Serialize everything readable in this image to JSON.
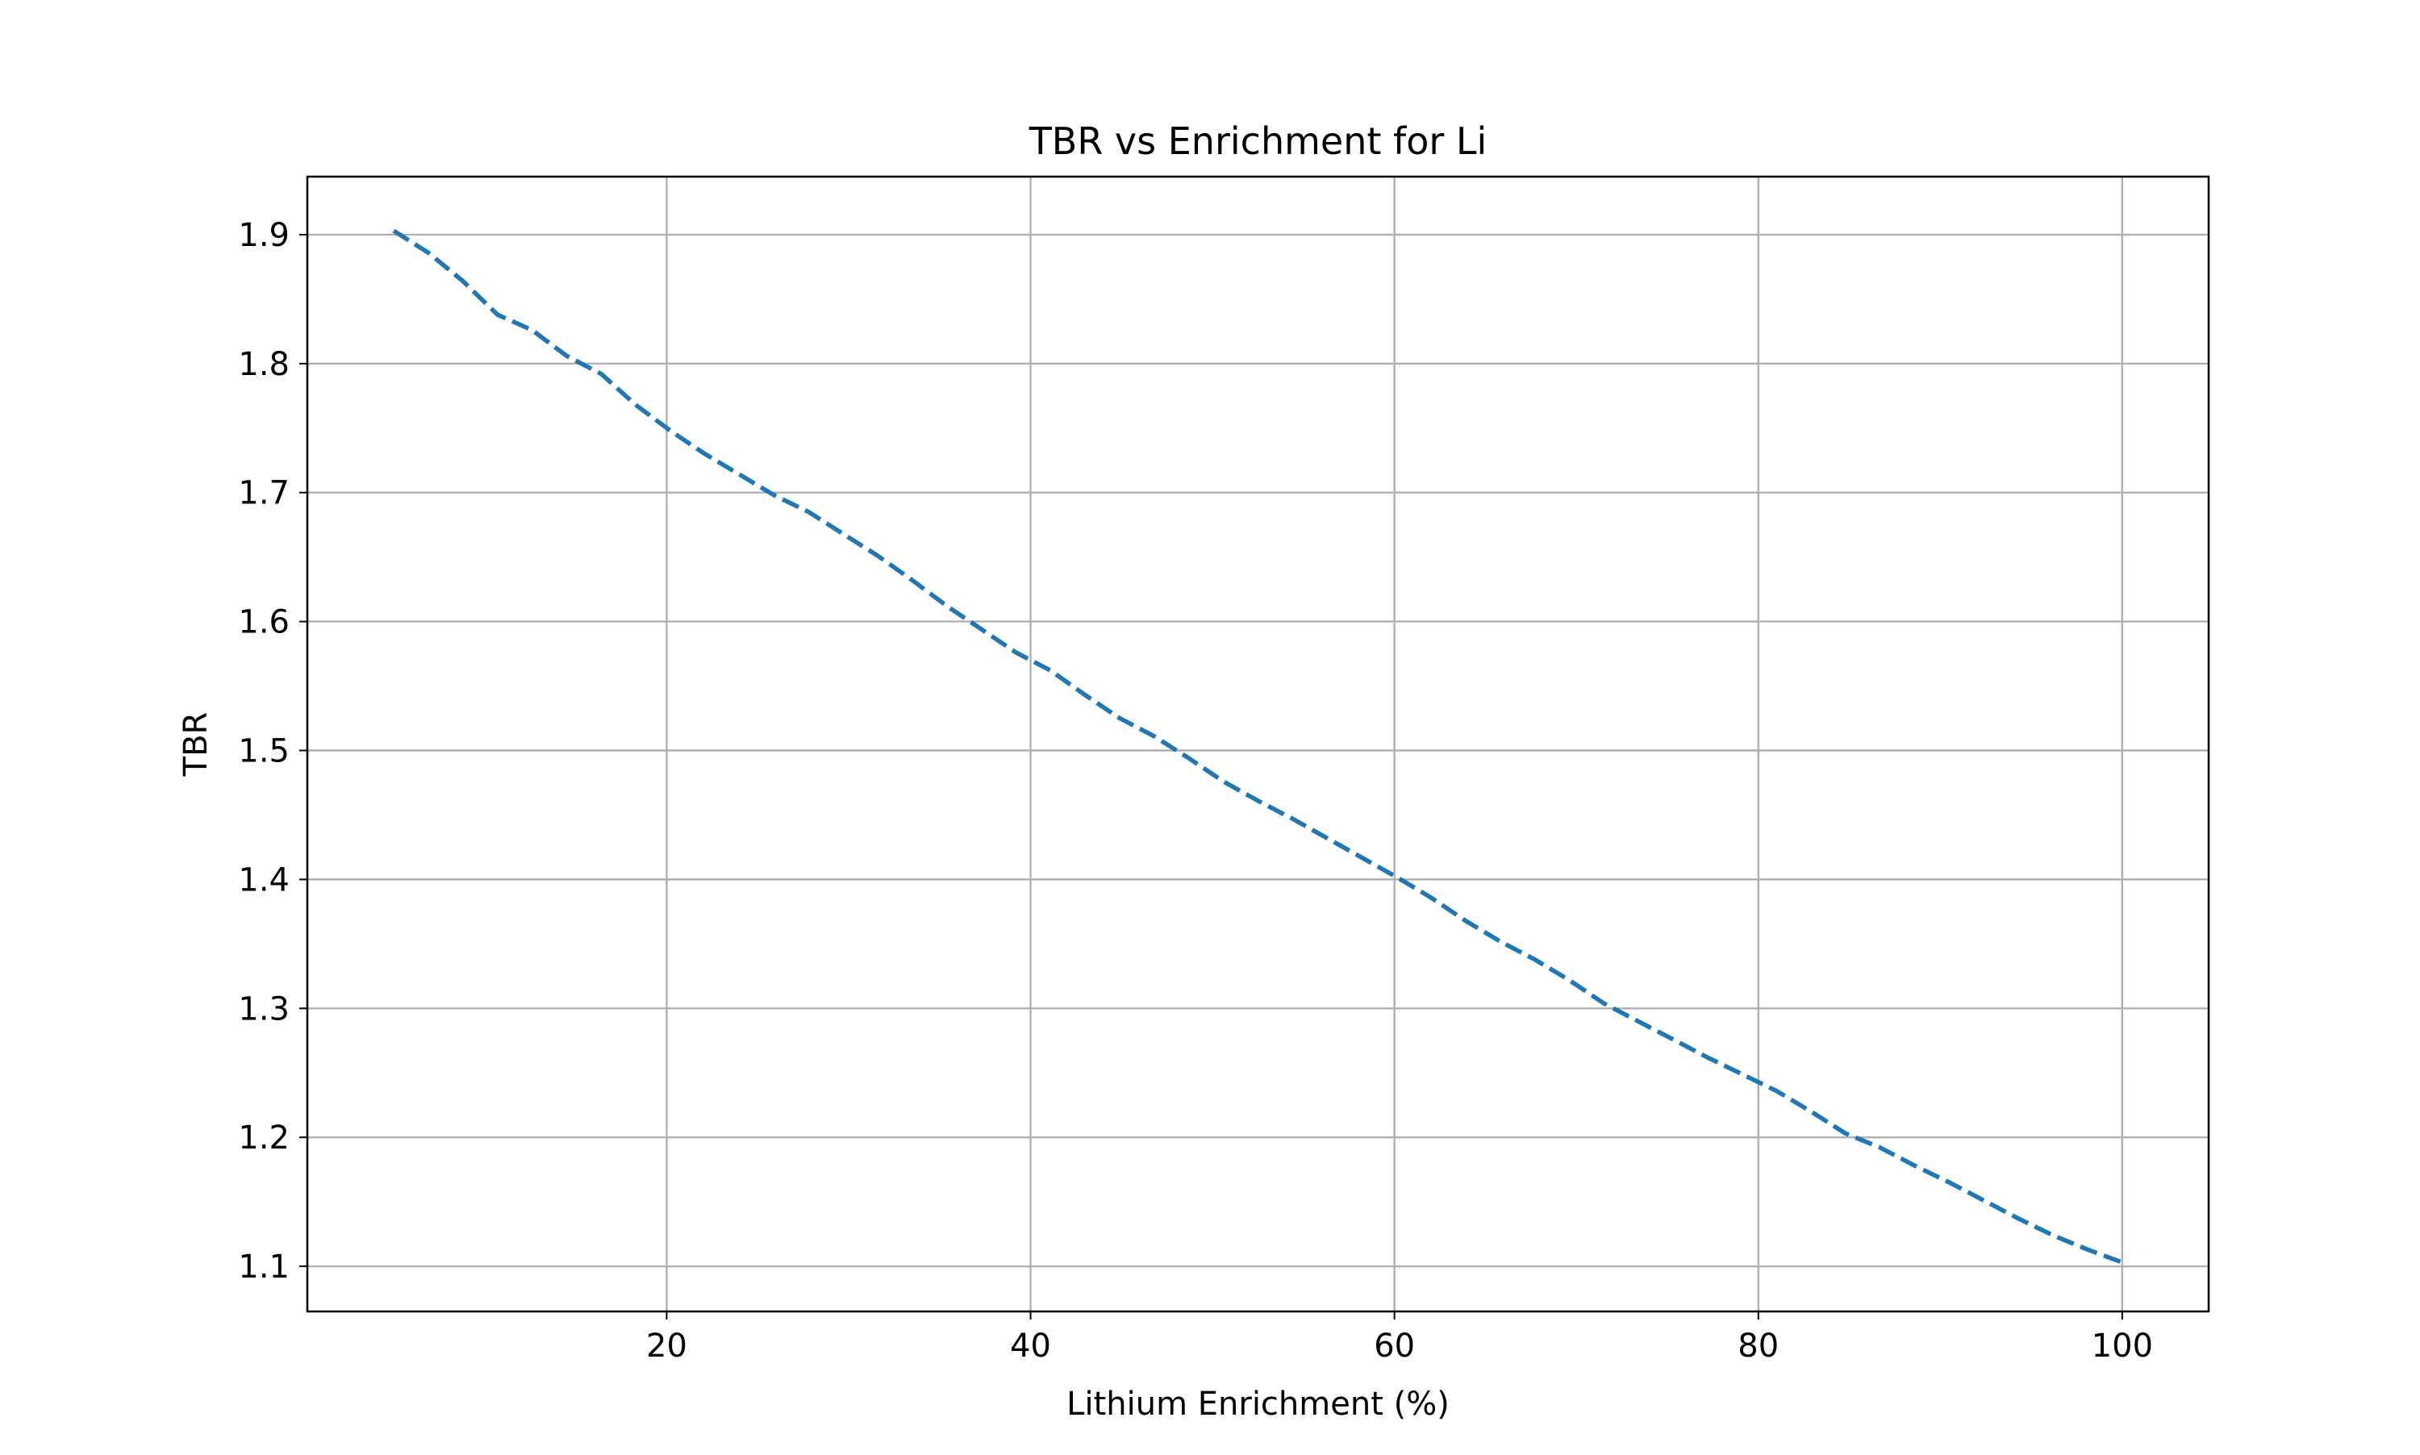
{
  "chart_data": {
    "type": "line",
    "title": "TBR vs Enrichment for Li",
    "xlabel": "Lithium Enrichment (%)",
    "ylabel": "TBR",
    "xlim": [
      0.25,
      104.75
    ],
    "ylim": [
      1.065,
      1.945
    ],
    "xticks": [
      20,
      40,
      60,
      80,
      100
    ],
    "yticks": [
      1.1,
      1.2,
      1.3,
      1.4,
      1.5,
      1.6,
      1.7,
      1.8,
      1.9
    ],
    "grid": true,
    "legend": "none",
    "series": [
      {
        "color": "#1f77b4",
        "line_style": "dashed",
        "x": [
          5.0,
          6.9,
          8.8,
          10.7,
          12.6,
          14.5,
          16.4,
          18.3,
          20.2,
          22.1,
          24.0,
          25.9,
          27.8,
          29.7,
          31.6,
          33.5,
          35.4,
          37.3,
          39.2,
          41.1,
          43.0,
          44.9,
          46.8,
          48.7,
          50.6,
          52.5,
          54.4,
          56.3,
          58.2,
          60.1,
          62.0,
          63.9,
          65.8,
          67.7,
          69.6,
          71.5,
          73.4,
          75.3,
          77.2,
          79.1,
          81.0,
          82.9,
          84.8,
          86.7,
          88.6,
          90.5,
          92.4,
          94.3,
          96.2,
          98.1,
          100.0
        ],
        "y": [
          1.903,
          1.886,
          1.864,
          1.838,
          1.826,
          1.806,
          1.792,
          1.768,
          1.748,
          1.73,
          1.714,
          1.698,
          1.685,
          1.668,
          1.651,
          1.632,
          1.612,
          1.594,
          1.576,
          1.562,
          1.543,
          1.525,
          1.511,
          1.494,
          1.476,
          1.461,
          1.447,
          1.432,
          1.417,
          1.402,
          1.386,
          1.368,
          1.352,
          1.338,
          1.322,
          1.304,
          1.29,
          1.276,
          1.262,
          1.249,
          1.236,
          1.22,
          1.203,
          1.192,
          1.178,
          1.165,
          1.151,
          1.137,
          1.124,
          1.113,
          1.103
        ]
      }
    ]
  }
}
